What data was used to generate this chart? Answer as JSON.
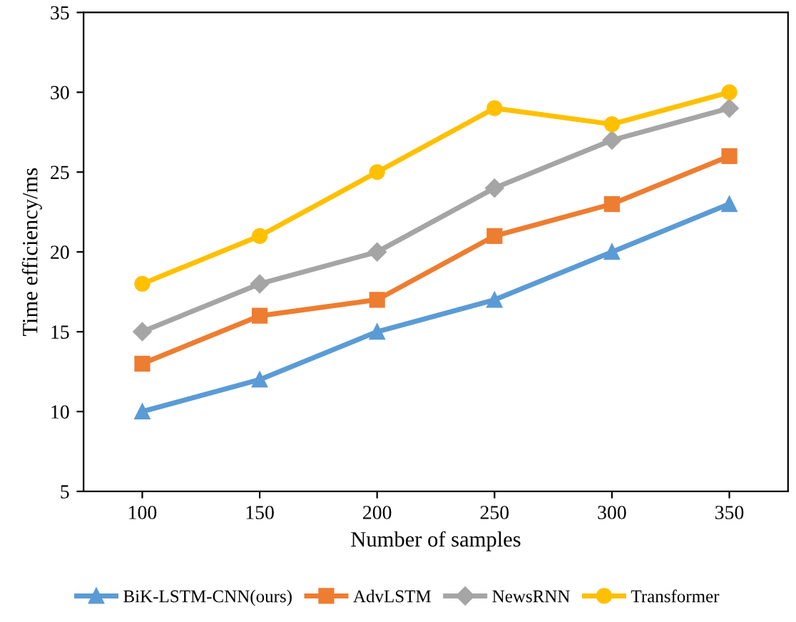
{
  "chart_data": {
    "type": "line",
    "xlabel": "Number of samples",
    "ylabel": "Time efficiency/ms",
    "categories": [
      "100",
      "150",
      "200",
      "250",
      "300",
      "350"
    ],
    "series": [
      {
        "name": "BiK-LSTM-CNN(ours)",
        "color": "#5b9bd5",
        "marker": "triangle",
        "values": [
          10,
          12,
          15,
          17,
          20,
          23
        ]
      },
      {
        "name": "AdvLSTM",
        "color": "#ed7d31",
        "marker": "square",
        "values": [
          13,
          16,
          17,
          21,
          23,
          26
        ]
      },
      {
        "name": "NewsRNN",
        "color": "#a5a5a5",
        "marker": "diamond",
        "values": [
          15,
          18,
          20,
          24,
          27,
          29
        ]
      },
      {
        "name": "Transformer",
        "color": "#ffc000",
        "marker": "circle",
        "values": [
          18,
          21,
          25,
          29,
          28,
          30
        ]
      }
    ],
    "ylim": [
      5,
      35
    ],
    "yticks": [
      5,
      10,
      15,
      20,
      25,
      30,
      35
    ],
    "grid": false,
    "legend": "bottom",
    "line_style": "solid"
  }
}
